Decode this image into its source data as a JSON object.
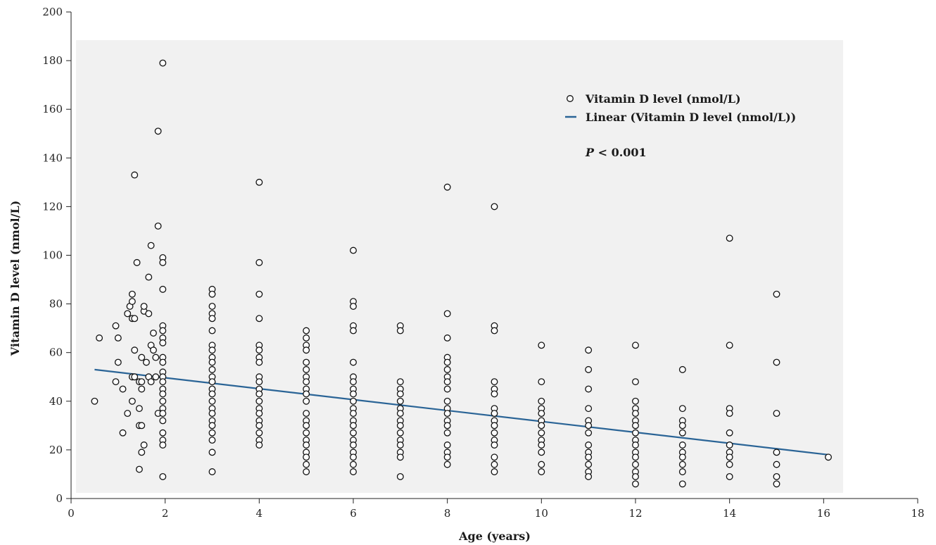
{
  "chart_data": {
    "type": "scatter",
    "title": "",
    "xlabel": "Age (years)",
    "ylabel": "Vitamin D level (nmol/L)",
    "xlim": [
      0,
      18
    ],
    "ylim": [
      0,
      200
    ],
    "xticks": [
      0,
      2,
      4,
      6,
      8,
      10,
      12,
      14,
      16,
      18
    ],
    "yticks": [
      0,
      20,
      40,
      60,
      80,
      100,
      120,
      140,
      160,
      180,
      200
    ],
    "grid": false,
    "legend_position": "top-right",
    "colors": {
      "trend": "#2a6496",
      "plot_background": "#f1f1f1",
      "marker_edge": "#111111"
    },
    "annotation": {
      "italic_part": "P",
      "rest": " < 0.001"
    },
    "series": [
      {
        "name": "Vitamin D level (nmol/L)",
        "marker": "open-circle",
        "points": [
          [
            0.5,
            40
          ],
          [
            0.6,
            66
          ],
          [
            0.95,
            71
          ],
          [
            0.95,
            48
          ],
          [
            1.0,
            66
          ],
          [
            1.0,
            56
          ],
          [
            1.1,
            45
          ],
          [
            1.1,
            27
          ],
          [
            1.2,
            76
          ],
          [
            1.2,
            35
          ],
          [
            1.25,
            79
          ],
          [
            1.3,
            84
          ],
          [
            1.3,
            81
          ],
          [
            1.3,
            74
          ],
          [
            1.35,
            74
          ],
          [
            1.3,
            50
          ],
          [
            1.35,
            50
          ],
          [
            1.3,
            40
          ],
          [
            1.35,
            61
          ],
          [
            1.35,
            133
          ],
          [
            1.4,
            97
          ],
          [
            1.45,
            48
          ],
          [
            1.45,
            30
          ],
          [
            1.45,
            12
          ],
          [
            1.45,
            37
          ],
          [
            1.5,
            58
          ],
          [
            1.5,
            48
          ],
          [
            1.5,
            45
          ],
          [
            1.5,
            30
          ],
          [
            1.5,
            19
          ],
          [
            1.55,
            77
          ],
          [
            1.55,
            79
          ],
          [
            1.55,
            22
          ],
          [
            1.6,
            56
          ],
          [
            1.65,
            50
          ],
          [
            1.65,
            91
          ],
          [
            1.65,
            76
          ],
          [
            1.7,
            104
          ],
          [
            1.7,
            63
          ],
          [
            1.7,
            48
          ],
          [
            1.75,
            68
          ],
          [
            1.75,
            61
          ],
          [
            1.8,
            58
          ],
          [
            1.8,
            50
          ],
          [
            1.85,
            35
          ],
          [
            1.85,
            112
          ],
          [
            1.85,
            151
          ],
          [
            1.95,
            179
          ],
          [
            1.95,
            99
          ],
          [
            1.95,
            97
          ],
          [
            1.95,
            86
          ],
          [
            1.95,
            71
          ],
          [
            1.95,
            69
          ],
          [
            1.95,
            66
          ],
          [
            1.95,
            64
          ],
          [
            1.95,
            58
          ],
          [
            1.95,
            56
          ],
          [
            1.95,
            52
          ],
          [
            1.95,
            50
          ],
          [
            1.95,
            48
          ],
          [
            1.95,
            45
          ],
          [
            1.95,
            43
          ],
          [
            1.95,
            40
          ],
          [
            1.95,
            37
          ],
          [
            1.95,
            35
          ],
          [
            1.95,
            32
          ],
          [
            1.95,
            27
          ],
          [
            1.95,
            24
          ],
          [
            1.95,
            22
          ],
          [
            1.95,
            9
          ],
          [
            3,
            86
          ],
          [
            3,
            84
          ],
          [
            3,
            79
          ],
          [
            3,
            76
          ],
          [
            3,
            74
          ],
          [
            3,
            69
          ],
          [
            3,
            63
          ],
          [
            3,
            61
          ],
          [
            3,
            58
          ],
          [
            3,
            56
          ],
          [
            3,
            53
          ],
          [
            3,
            50
          ],
          [
            3,
            48
          ],
          [
            3,
            45
          ],
          [
            3,
            43
          ],
          [
            3,
            40
          ],
          [
            3,
            37
          ],
          [
            3,
            35
          ],
          [
            3,
            32
          ],
          [
            3,
            30
          ],
          [
            3,
            27
          ],
          [
            3,
            24
          ],
          [
            3,
            19
          ],
          [
            3,
            11
          ],
          [
            4,
            130
          ],
          [
            4,
            97
          ],
          [
            4,
            84
          ],
          [
            4,
            74
          ],
          [
            4,
            63
          ],
          [
            4,
            61
          ],
          [
            4,
            58
          ],
          [
            4,
            56
          ],
          [
            4,
            50
          ],
          [
            4,
            48
          ],
          [
            4,
            45
          ],
          [
            4,
            43
          ],
          [
            4,
            40
          ],
          [
            4,
            37
          ],
          [
            4,
            35
          ],
          [
            4,
            32
          ],
          [
            4,
            30
          ],
          [
            4,
            27
          ],
          [
            4,
            24
          ],
          [
            4,
            22
          ],
          [
            5,
            69
          ],
          [
            5,
            66
          ],
          [
            5,
            63
          ],
          [
            5,
            61
          ],
          [
            5,
            56
          ],
          [
            5,
            53
          ],
          [
            5,
            50
          ],
          [
            5,
            48
          ],
          [
            5,
            45
          ],
          [
            5,
            43
          ],
          [
            5,
            40
          ],
          [
            5,
            35
          ],
          [
            5,
            32
          ],
          [
            5,
            30
          ],
          [
            5,
            27
          ],
          [
            5,
            24
          ],
          [
            5,
            22
          ],
          [
            5,
            19
          ],
          [
            5,
            17
          ],
          [
            5,
            14
          ],
          [
            5,
            11
          ],
          [
            6,
            102
          ],
          [
            6,
            81
          ],
          [
            6,
            79
          ],
          [
            6,
            71
          ],
          [
            6,
            69
          ],
          [
            6,
            56
          ],
          [
            6,
            50
          ],
          [
            6,
            48
          ],
          [
            6,
            45
          ],
          [
            6,
            43
          ],
          [
            6,
            40
          ],
          [
            6,
            37
          ],
          [
            6,
            35
          ],
          [
            6,
            32
          ],
          [
            6,
            30
          ],
          [
            6,
            27
          ],
          [
            6,
            24
          ],
          [
            6,
            22
          ],
          [
            6,
            19
          ],
          [
            6,
            17
          ],
          [
            6,
            14
          ],
          [
            6,
            11
          ],
          [
            7,
            71
          ],
          [
            7,
            69
          ],
          [
            7,
            48
          ],
          [
            7,
            45
          ],
          [
            7,
            43
          ],
          [
            7,
            40
          ],
          [
            7,
            37
          ],
          [
            7,
            35
          ],
          [
            7,
            32
          ],
          [
            7,
            30
          ],
          [
            7,
            27
          ],
          [
            7,
            24
          ],
          [
            7,
            22
          ],
          [
            7,
            19
          ],
          [
            7,
            17
          ],
          [
            7,
            9
          ],
          [
            8,
            128
          ],
          [
            8,
            76
          ],
          [
            8,
            66
          ],
          [
            8,
            58
          ],
          [
            8,
            56
          ],
          [
            8,
            53
          ],
          [
            8,
            50
          ],
          [
            8,
            48
          ],
          [
            8,
            45
          ],
          [
            8,
            40
          ],
          [
            8,
            37
          ],
          [
            8,
            35
          ],
          [
            8,
            32
          ],
          [
            8,
            30
          ],
          [
            8,
            27
          ],
          [
            8,
            22
          ],
          [
            8,
            19
          ],
          [
            8,
            17
          ],
          [
            8,
            14
          ],
          [
            9,
            120
          ],
          [
            9,
            71
          ],
          [
            9,
            69
          ],
          [
            9,
            48
          ],
          [
            9,
            45
          ],
          [
            9,
            43
          ],
          [
            9,
            37
          ],
          [
            9,
            35
          ],
          [
            9,
            32
          ],
          [
            9,
            30
          ],
          [
            9,
            27
          ],
          [
            9,
            24
          ],
          [
            9,
            22
          ],
          [
            9,
            17
          ],
          [
            9,
            14
          ],
          [
            9,
            11
          ],
          [
            10,
            63
          ],
          [
            10,
            48
          ],
          [
            10,
            40
          ],
          [
            10,
            37
          ],
          [
            10,
            35
          ],
          [
            10,
            32
          ],
          [
            10,
            30
          ],
          [
            10,
            27
          ],
          [
            10,
            24
          ],
          [
            10,
            22
          ],
          [
            10,
            19
          ],
          [
            10,
            14
          ],
          [
            10,
            11
          ],
          [
            11,
            61
          ],
          [
            11,
            53
          ],
          [
            11,
            45
          ],
          [
            11,
            37
          ],
          [
            11,
            32
          ],
          [
            11,
            30
          ],
          [
            11,
            27
          ],
          [
            11,
            22
          ],
          [
            11,
            19
          ],
          [
            11,
            17
          ],
          [
            11,
            14
          ],
          [
            11,
            11
          ],
          [
            11,
            9
          ],
          [
            12,
            63
          ],
          [
            12,
            48
          ],
          [
            12,
            40
          ],
          [
            12,
            37
          ],
          [
            12,
            35
          ],
          [
            12,
            32
          ],
          [
            12,
            30
          ],
          [
            12,
            27
          ],
          [
            12,
            24
          ],
          [
            12,
            22
          ],
          [
            12,
            19
          ],
          [
            12,
            17
          ],
          [
            12,
            14
          ],
          [
            12,
            11
          ],
          [
            12,
            9
          ],
          [
            12,
            6
          ],
          [
            13,
            53
          ],
          [
            13,
            37
          ],
          [
            13,
            32
          ],
          [
            13,
            30
          ],
          [
            13,
            27
          ],
          [
            13,
            22
          ],
          [
            13,
            19
          ],
          [
            13,
            17
          ],
          [
            13,
            14
          ],
          [
            13,
            11
          ],
          [
            13,
            6
          ],
          [
            14,
            107
          ],
          [
            14,
            63
          ],
          [
            14,
            37
          ],
          [
            14,
            35
          ],
          [
            14,
            27
          ],
          [
            14,
            22
          ],
          [
            14,
            19
          ],
          [
            14,
            17
          ],
          [
            14,
            14
          ],
          [
            14,
            9
          ],
          [
            15,
            84
          ],
          [
            15,
            56
          ],
          [
            15,
            35
          ],
          [
            15,
            19
          ],
          [
            15,
            14
          ],
          [
            15,
            9
          ],
          [
            15,
            6
          ],
          [
            16.1,
            17
          ]
        ]
      },
      {
        "name": "Linear (Vitamin D level (nmol/L))",
        "type": "line",
        "points": [
          [
            0.5,
            53
          ],
          [
            16.1,
            18
          ]
        ]
      }
    ]
  }
}
